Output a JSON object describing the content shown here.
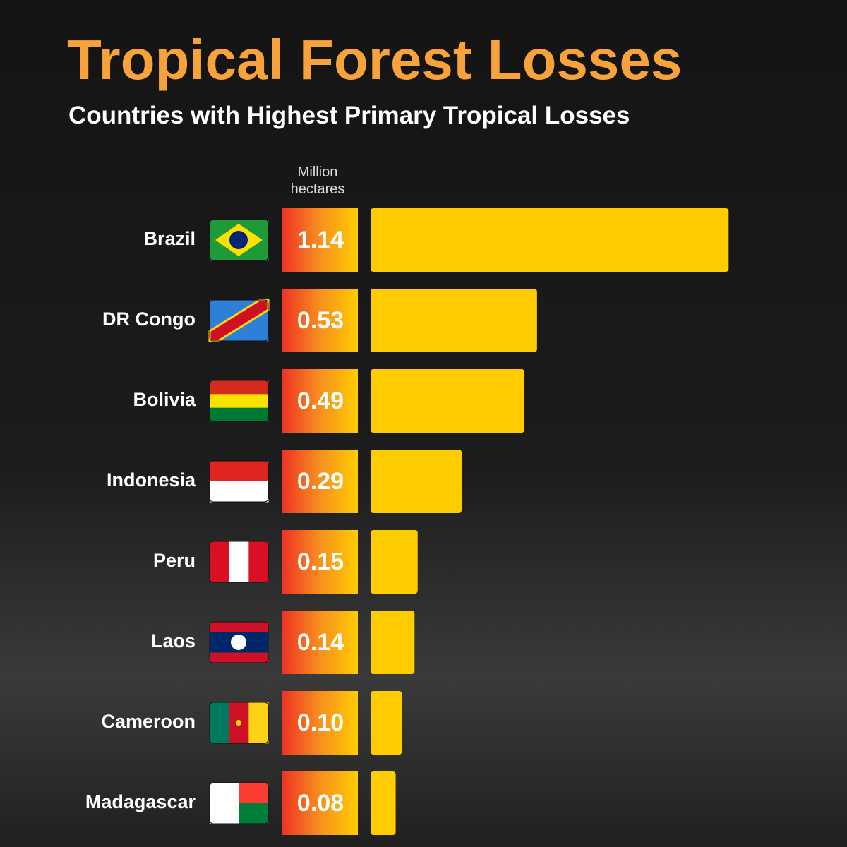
{
  "chart_data": {
    "type": "bar",
    "title": "Tropical Forest Losses",
    "subtitle": "Countries with Highest Primary Tropical Losses",
    "units_label": "Million hectares",
    "categories": [
      "Brazil",
      "DR Congo",
      "Bolivia",
      "Indonesia",
      "Peru",
      "Laos",
      "Cameroon",
      "Madagascar"
    ],
    "values": [
      1.14,
      0.53,
      0.49,
      0.29,
      0.15,
      0.14,
      0.1,
      0.08
    ],
    "value_labels": [
      "1.14",
      "0.53",
      "0.49",
      "0.29",
      "0.15",
      "0.14",
      "0.10",
      "0.08"
    ],
    "color": "#ffcc00"
  }
}
